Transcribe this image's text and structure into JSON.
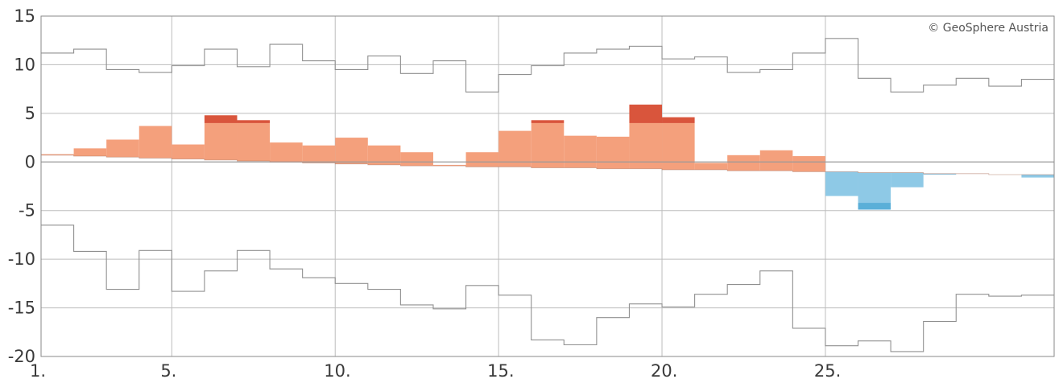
{
  "credit": "© GeoSphere Austria",
  "colors": {
    "positive_light": "#f4a07c",
    "positive_dark": "#d9553c",
    "negative_light": "#8ec9e6",
    "negative_dark": "#5aafd8",
    "extreme_line": "#909090",
    "grid": "#bdbdbd",
    "zero_line": "#9a9a9a"
  },
  "chart_data": {
    "type": "bar",
    "title": "",
    "xlabel": "",
    "ylabel": "",
    "ylim": [
      -20,
      15
    ],
    "xlim": [
      1,
      32
    ],
    "y_ticks": [
      15,
      10,
      5,
      0,
      -5,
      -10,
      -15,
      -20
    ],
    "y_tick_labels": [
      "15",
      "10",
      "5",
      "0",
      "-5",
      "-10",
      "-15",
      "-20"
    ],
    "x_ticks": [
      1,
      5,
      10,
      15,
      20,
      25
    ],
    "x_tick_labels": [
      "1.",
      "5.",
      "10.",
      "15.",
      "20.",
      "25."
    ],
    "grid": true,
    "series": [
      {
        "name": "",
        "role": "daily_anomaly",
        "values": [
          0.8,
          1.4,
          2.3,
          3.7,
          1.8,
          4.8,
          4.3,
          2.0,
          1.7,
          2.5,
          1.7,
          1.0,
          -0.3,
          1.0,
          3.2,
          4.3,
          2.7,
          2.6,
          5.9,
          4.6,
          -0.1,
          0.7,
          1.2,
          0.6,
          -3.5,
          -4.9,
          -2.6,
          -1.3,
          -1.2,
          -1.3,
          -1.6
        ]
      },
      {
        "name": "",
        "role": "normal_range",
        "values": [
          0.7,
          0.6,
          0.5,
          0.4,
          0.3,
          0.2,
          0.1,
          0.0,
          -0.1,
          -0.2,
          -0.3,
          -0.4,
          -0.4,
          -0.5,
          -0.5,
          -0.6,
          -0.6,
          -0.7,
          -0.7,
          -0.8,
          -0.8,
          -0.9,
          -0.9,
          -1.0,
          -1.0,
          -1.1,
          -1.1,
          -1.2,
          -1.2,
          -1.3,
          -1.3
        ]
      },
      {
        "name": "",
        "role": "max_anomaly",
        "values": [
          11.2,
          11.6,
          9.5,
          9.2,
          9.9,
          11.6,
          9.8,
          12.1,
          10.4,
          9.5,
          10.9,
          9.1,
          10.4,
          7.2,
          9.0,
          9.9,
          11.2,
          11.6,
          11.9,
          10.6,
          10.8,
          9.2,
          9.5,
          11.2,
          12.7,
          8.6,
          7.2,
          7.9,
          8.6,
          7.8,
          8.5
        ]
      },
      {
        "name": "",
        "role": "min_anomaly",
        "values": [
          -6.5,
          -9.2,
          -13.1,
          -9.1,
          -13.3,
          -11.2,
          -9.1,
          -11.0,
          -11.9,
          -12.5,
          -13.1,
          -14.7,
          -15.1,
          -12.7,
          -13.7,
          -18.3,
          -18.8,
          -16.0,
          -14.6,
          -14.9,
          -13.6,
          -12.6,
          -11.2,
          -17.1,
          -18.9,
          -18.4,
          -19.5,
          -16.4,
          -13.6,
          -13.8,
          -13.7
        ]
      }
    ]
  }
}
